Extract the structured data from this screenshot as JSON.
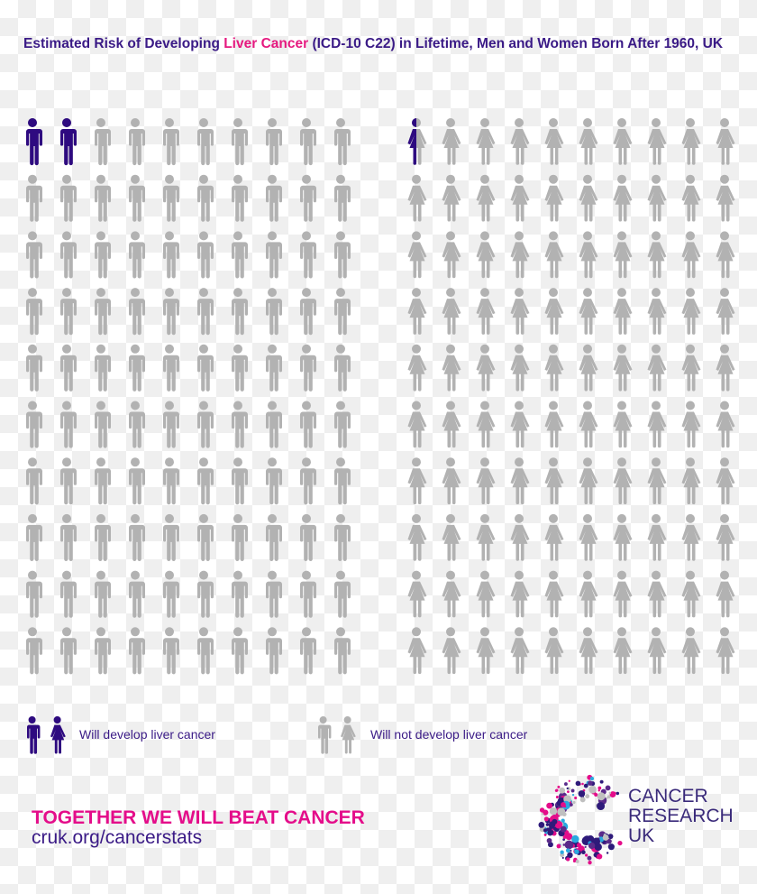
{
  "title": {
    "part1": "Estimated Risk of Developing ",
    "highlight": "Liver Cancer",
    "part2": " (ICD-10 C22) in Lifetime, Men and Women Born After 1960, UK"
  },
  "chart_data": {
    "type": "pictogram",
    "groups": [
      {
        "group": "Men",
        "icon": "man-icon",
        "total": 100,
        "will_develop": 2
      },
      {
        "group": "Women",
        "icon": "woman-icon",
        "total": 100,
        "will_develop": 0.5
      }
    ],
    "layout": "10x10 grid per group"
  },
  "legend": {
    "develop": "Will develop liver cancer",
    "not_develop": "Will not develop liver cancer"
  },
  "footer": {
    "tagline": "TOGETHER WE WILL BEAT CANCER",
    "url": "cruk.org/cancerstats"
  },
  "logo": {
    "line1": "CANCER",
    "line2": "RESEARCH",
    "line3": "UK"
  },
  "colors": {
    "highlight": "#2e0a80",
    "inactive": "#b2b2b2",
    "accent": "#e40d8a",
    "text": "#3a1a86"
  }
}
